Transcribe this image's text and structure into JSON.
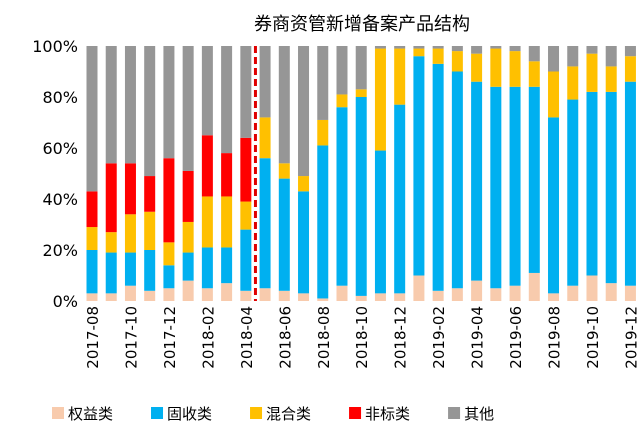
{
  "chart_data": {
    "type": "stacked_bar",
    "title": "券商资管新增备案产品结构",
    "categories": [
      "2017-08",
      null,
      "2017-10",
      null,
      "2017-12",
      null,
      "2018-02",
      null,
      "2018-04",
      null,
      "2018-06",
      null,
      "2018-08",
      null,
      "2018-10",
      null,
      "2018-12",
      null,
      "2019-02",
      null,
      "2019-04",
      null,
      "2019-06",
      null,
      "2019-08",
      null,
      "2019-10",
      null,
      "2019-12"
    ],
    "series": [
      {
        "name": "权益类",
        "color": "#f8cbad",
        "values": [
          3,
          3,
          6,
          4,
          5,
          8,
          5,
          7,
          4,
          5,
          4,
          3,
          1,
          6,
          2,
          3,
          3,
          10,
          4,
          5,
          8,
          5,
          6,
          11,
          3,
          6,
          10,
          7,
          6
        ]
      },
      {
        "name": "固收类",
        "color": "#00b0f0",
        "values": [
          17,
          16,
          13,
          16,
          9,
          11,
          16,
          14,
          24,
          51,
          44,
          40,
          60,
          70,
          78,
          56,
          74,
          86,
          89,
          85,
          78,
          79,
          78,
          73,
          69,
          73,
          72,
          75,
          80
        ]
      },
      {
        "name": "混合类",
        "color": "#ffc000",
        "values": [
          9,
          8,
          15,
          15,
          9,
          12,
          20,
          20,
          11,
          16,
          6,
          6,
          10,
          5,
          3,
          40,
          22,
          3,
          6,
          8,
          11,
          15,
          14,
          10,
          18,
          13,
          15,
          10,
          10
        ]
      },
      {
        "name": "非标类",
        "color": "#ff0000",
        "values": [
          14,
          27,
          20,
          14,
          33,
          20,
          24,
          17,
          25,
          0,
          0,
          0,
          0,
          0,
          0,
          0,
          0,
          0,
          0,
          0,
          0,
          0,
          0,
          0,
          0,
          0,
          0,
          0,
          0
        ]
      },
      {
        "name": "其他",
        "color": "#969696",
        "values": [
          57,
          46,
          46,
          51,
          44,
          49,
          35,
          42,
          36,
          28,
          46,
          51,
          29,
          19,
          17,
          1,
          1,
          1,
          1,
          2,
          3,
          1,
          2,
          6,
          10,
          8,
          3,
          8,
          4
        ]
      }
    ],
    "ylim": [
      0,
      100
    ],
    "yticks": [
      {
        "value": 0,
        "label": "0%"
      },
      {
        "value": 20,
        "label": "20%"
      },
      {
        "value": 40,
        "label": "40%"
      },
      {
        "value": 60,
        "label": "60%"
      },
      {
        "value": 80,
        "label": "80%"
      },
      {
        "value": 100,
        "label": "100%"
      }
    ]
  }
}
